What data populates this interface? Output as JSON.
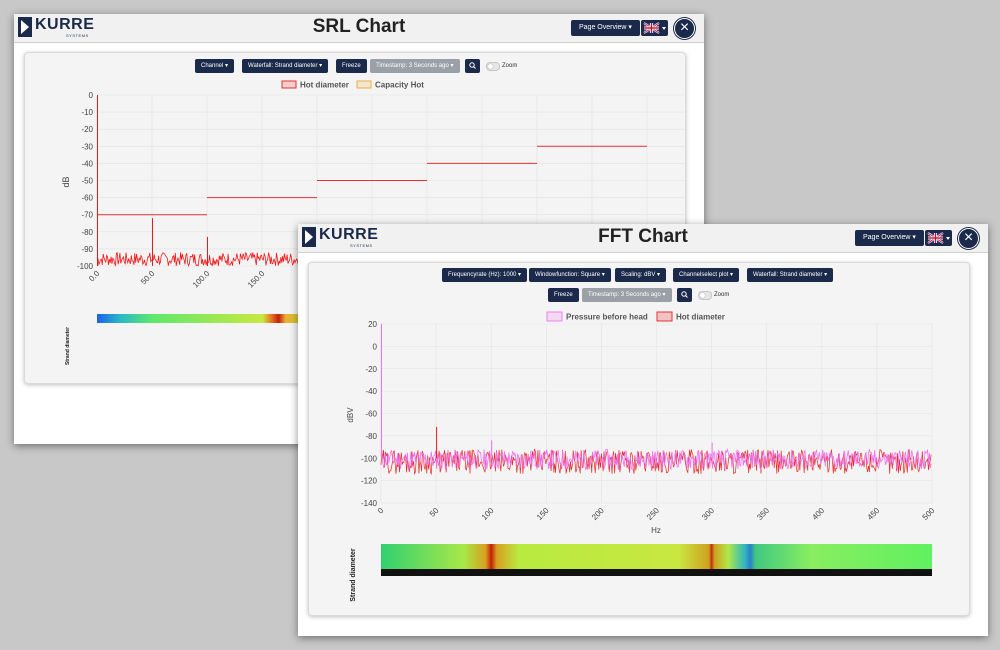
{
  "srl": {
    "logo": {
      "text": "KURRE",
      "sub": "SYSTEMS"
    },
    "title": "SRL Chart",
    "page_overview": "Page Overview",
    "toolbar": {
      "channel": "Channel",
      "waterfall": "Waterfall: Strand diameter",
      "freeze": "Freeze",
      "timestamp": "Timestamp: 3 Seconds ago",
      "zoom": "Zoom"
    },
    "waterfall_label": "Strand diameter",
    "chart_data": {
      "type": "line",
      "ylabel": "dB",
      "xlabel": "",
      "ylim": [
        -100,
        0
      ],
      "y_ticks": [
        "0",
        "-10",
        "-20",
        "-30",
        "-40",
        "-50",
        "-60",
        "-70",
        "-80",
        "-90",
        "-100"
      ],
      "x_ticks_visible": [
        "0.0",
        "50.0",
        "100.0",
        "150.0"
      ],
      "grid": true,
      "legend_position": "top",
      "legend": [
        {
          "name": "Hot diameter",
          "color": "#e83030"
        },
        {
          "name": "Capacity Hot",
          "color": "#e8b040"
        }
      ],
      "steps": [
        {
          "x_start": 0,
          "x_end": 100,
          "value": -70
        },
        {
          "x_start": 100,
          "x_end": 200,
          "value": -60
        },
        {
          "x_start": 200,
          "x_end": 300,
          "value": -50
        },
        {
          "x_start": 300,
          "x_end": 400,
          "value": -40
        },
        {
          "x_start": 400,
          "x_end": 500,
          "value": -30
        }
      ],
      "noise_floor_db": [
        -100,
        -92
      ],
      "spikes": [
        {
          "x": 0,
          "value": 0
        },
        {
          "x": 50,
          "value": -72
        },
        {
          "x": 100,
          "value": -83
        }
      ]
    }
  },
  "fft": {
    "logo": {
      "text": "KURRE",
      "sub": "SYSTEMS"
    },
    "title": "FFT Chart",
    "page_overview": "Page Overview",
    "toolbar": {
      "frequencyrate": "Frequencyrate (Hz): 1000",
      "windowfunction": "Windowfunction: Square",
      "scaling": "Scaling: dBV",
      "channelselect": "Channelselect plot",
      "waterfall": "Waterfall: Strand diameter",
      "freeze": "Freeze",
      "timestamp": "Timestamp: 3 Seconds ago",
      "zoom": "Zoom"
    },
    "waterfall_label": "Strand diameter",
    "chart_data": {
      "type": "line",
      "xlabel": "Hz",
      "ylabel": "dBV",
      "xlim": [
        0,
        500
      ],
      "ylim": [
        -140,
        20
      ],
      "x_ticks": [
        "0",
        "50",
        "100",
        "150",
        "200",
        "250",
        "300",
        "350",
        "400",
        "450",
        "500"
      ],
      "y_ticks": [
        "20",
        "0",
        "-20",
        "-40",
        "-60",
        "-80",
        "-100",
        "-120",
        "-140"
      ],
      "grid": true,
      "legend_position": "top",
      "legend": [
        {
          "name": "Pressure before head",
          "color": "#ee80ee"
        },
        {
          "name": "Hot diameter",
          "color": "#e83030"
        }
      ],
      "noise_floor_db": [
        -114,
        -92
      ],
      "spikes": [
        {
          "x": 0,
          "value": 20
        },
        {
          "x": 50,
          "value": -72
        },
        {
          "x": 100,
          "value": -84
        },
        {
          "x": 300,
          "value": -86
        }
      ]
    }
  }
}
